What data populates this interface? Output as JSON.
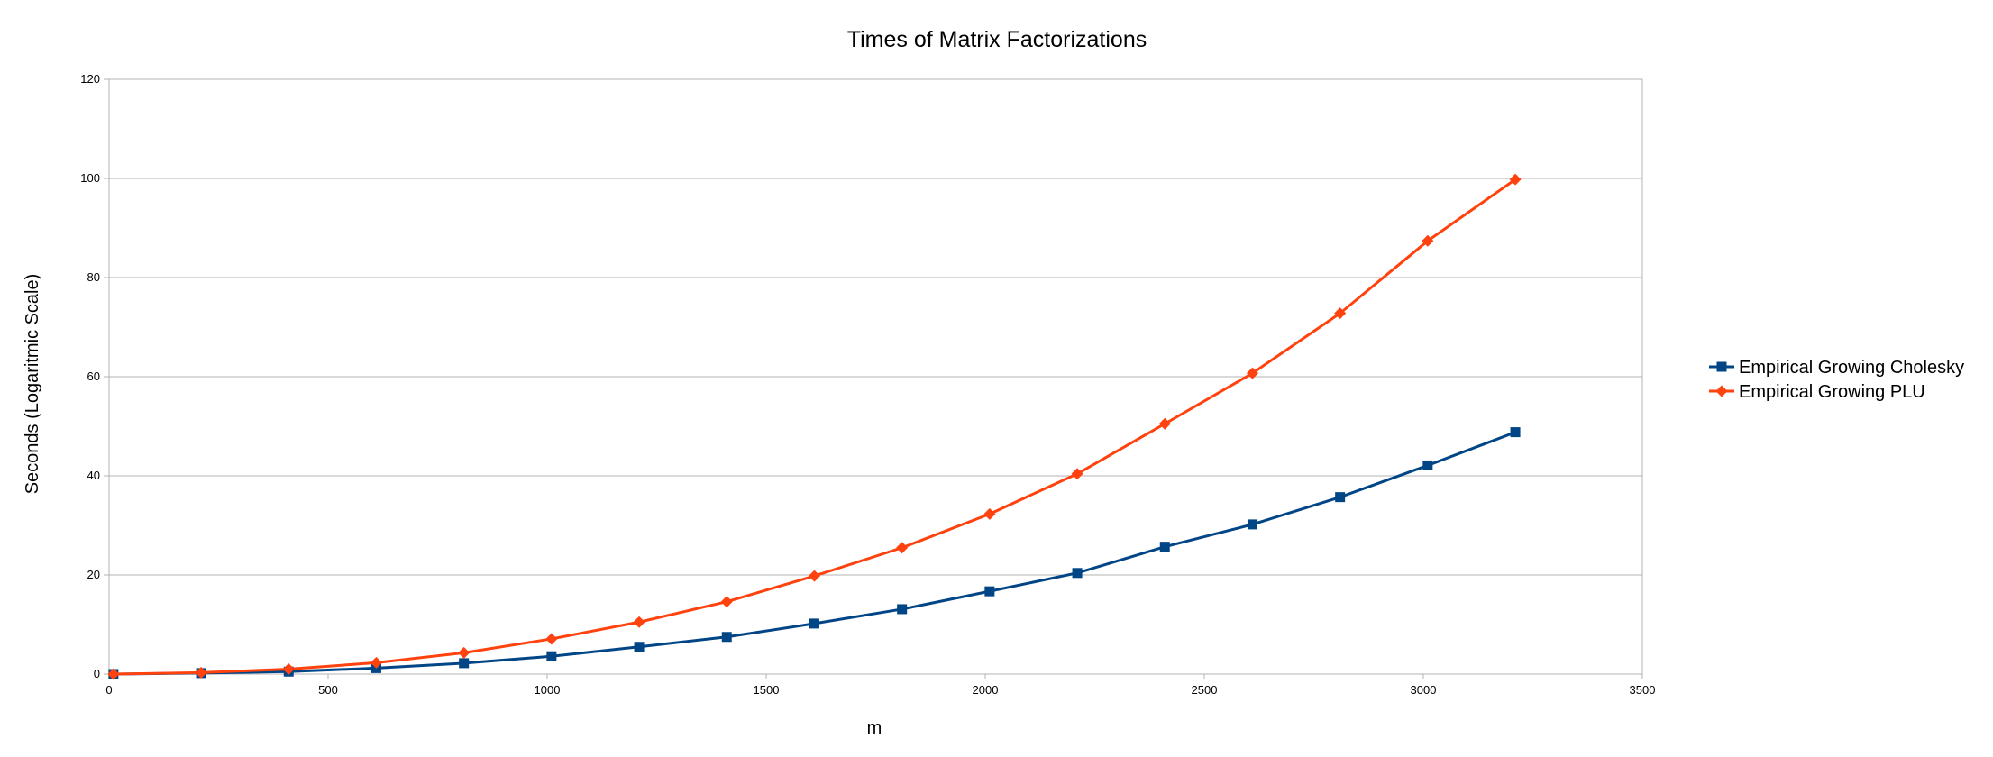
{
  "chart_data": {
    "type": "line",
    "title": "Times of Matrix Factorizations",
    "xlabel": "m",
    "ylabel": "Seconds (Logaritmic Scale)",
    "xlim": [
      0,
      3500
    ],
    "ylim": [
      0,
      120
    ],
    "x_ticks": [
      0,
      500,
      1000,
      1500,
      2000,
      2500,
      3000,
      3500
    ],
    "y_ticks": [
      0,
      20,
      40,
      60,
      80,
      100,
      120
    ],
    "grid": "horizontal",
    "legend_position": "right",
    "x": [
      10,
      210,
      410,
      610,
      810,
      1010,
      1210,
      1410,
      1610,
      1810,
      2010,
      2210,
      2410,
      2610,
      2810,
      3010,
      3210
    ],
    "series": [
      {
        "name": "Empirical Growing Cholesky",
        "color": "#004586",
        "marker": "square",
        "values": [
          0.0,
          0.2,
          0.5,
          1.2,
          2.2,
          3.6,
          5.5,
          7.5,
          10.2,
          13.1,
          16.7,
          20.4,
          25.7,
          30.2,
          35.7,
          42.1,
          48.8
        ]
      },
      {
        "name": "Empirical Growing PLU",
        "color": "#ff420e",
        "marker": "diamond",
        "values": [
          0.0,
          0.3,
          1.0,
          2.3,
          4.3,
          7.1,
          10.5,
          14.6,
          19.8,
          25.5,
          32.3,
          40.4,
          50.5,
          60.7,
          72.8,
          87.4,
          99.8
        ]
      }
    ]
  }
}
